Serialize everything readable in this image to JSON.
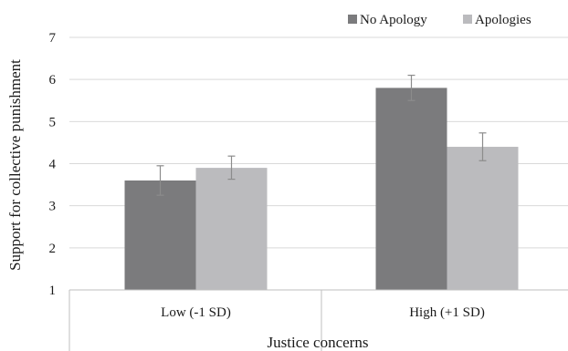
{
  "chart_data": {
    "type": "bar",
    "title": "",
    "xlabel": "Justice concerns",
    "ylabel": "Support for collective punishment",
    "categories": [
      "Low (-1 SD)",
      "High (+1 SD)"
    ],
    "series": [
      {
        "name": "No Apology",
        "color": "#7b7b7d",
        "values": [
          3.6,
          5.8
        ],
        "error_low": [
          3.25,
          5.5
        ],
        "error_high": [
          3.95,
          6.1
        ]
      },
      {
        "name": "Apologies",
        "color": "#bbbbbe",
        "values": [
          3.9,
          4.4
        ],
        "error_low": [
          3.63,
          4.07
        ],
        "error_high": [
          4.18,
          4.73
        ]
      }
    ],
    "ylim": [
      1,
      7
    ],
    "yticks": [
      "1",
      "2",
      "3",
      "4",
      "5",
      "6",
      "7"
    ],
    "grid": true,
    "legend": "top-right",
    "gridline_color": "#d9d9d9",
    "axis_color": "#bfbfbf",
    "errorbar_color": "#8c8c8c"
  }
}
